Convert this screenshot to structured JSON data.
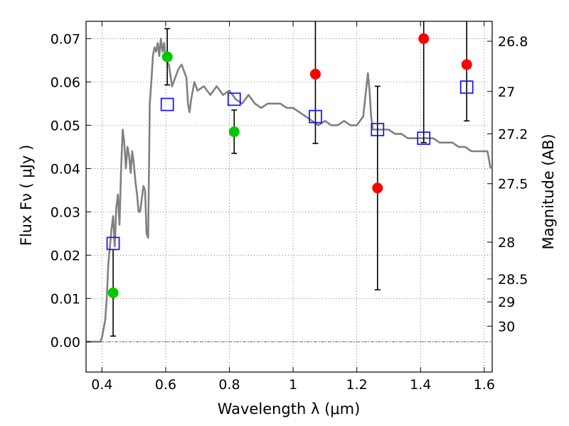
{
  "chart_data": {
    "type": "scatter",
    "xlabel": "Wavelength  λ (μm)",
    "ylabel": "Flux  Fν  ( μJy )",
    "y2label": "Magnitude (AB)",
    "xlim": [
      0.35,
      1.625
    ],
    "ylim": [
      -0.007,
      0.074
    ],
    "grid": true,
    "x_ticks": [
      {
        "value": 0.4,
        "label": "0.4"
      },
      {
        "value": 0.6,
        "label": "0.6"
      },
      {
        "value": 0.8,
        "label": "0.8"
      },
      {
        "value": 1.0,
        "label": "1"
      },
      {
        "value": 1.2,
        "label": "1.2"
      },
      {
        "value": 1.4,
        "label": "1.4"
      },
      {
        "value": 1.6,
        "label": "1.6"
      }
    ],
    "y_ticks": [
      {
        "value": 0.0,
        "label": "0.00"
      },
      {
        "value": 0.01,
        "label": "0.01"
      },
      {
        "value": 0.02,
        "label": "0.02"
      },
      {
        "value": 0.03,
        "label": "0.03"
      },
      {
        "value": 0.04,
        "label": "0.04"
      },
      {
        "value": 0.05,
        "label": "0.05"
      },
      {
        "value": 0.06,
        "label": "0.06"
      },
      {
        "value": 0.07,
        "label": "0.07"
      }
    ],
    "y2_ticks": [
      {
        "flux": 0.0694,
        "label": "26.8"
      },
      {
        "flux": 0.0578,
        "label": "27"
      },
      {
        "flux": 0.048,
        "label": "27.2"
      },
      {
        "flux": 0.0365,
        "label": "27.5"
      },
      {
        "flux": 0.023,
        "label": "28"
      },
      {
        "flux": 0.0145,
        "label": "28.5"
      },
      {
        "flux": 0.0092,
        "label": "29"
      },
      {
        "flux": 0.0036,
        "label": "30"
      }
    ],
    "series": [
      {
        "marker": "line",
        "color": "#808080",
        "x": [
          0.35,
          0.38,
          0.395,
          0.4,
          0.41,
          0.415,
          0.42,
          0.425,
          0.43,
          0.435,
          0.44,
          0.445,
          0.45,
          0.455,
          0.46,
          0.465,
          0.47,
          0.475,
          0.48,
          0.485,
          0.49,
          0.495,
          0.5,
          0.505,
          0.51,
          0.515,
          0.52,
          0.525,
          0.53,
          0.535,
          0.54,
          0.545,
          0.55,
          0.555,
          0.56,
          0.565,
          0.57,
          0.575,
          0.58,
          0.585,
          0.59,
          0.595,
          0.6,
          0.61,
          0.62,
          0.63,
          0.64,
          0.65,
          0.66,
          0.665,
          0.67,
          0.675,
          0.68,
          0.69,
          0.7,
          0.72,
          0.74,
          0.76,
          0.78,
          0.8,
          0.82,
          0.84,
          0.86,
          0.88,
          0.9,
          0.92,
          0.94,
          0.96,
          0.98,
          1.0,
          1.02,
          1.04,
          1.06,
          1.08,
          1.1,
          1.12,
          1.14,
          1.16,
          1.18,
          1.2,
          1.22,
          1.235,
          1.24,
          1.245,
          1.25,
          1.26,
          1.28,
          1.3,
          1.32,
          1.34,
          1.36,
          1.38,
          1.4,
          1.42,
          1.44,
          1.46,
          1.48,
          1.5,
          1.52,
          1.54,
          1.56,
          1.58,
          1.6,
          1.61,
          1.62
        ],
        "y": [
          0.0,
          0.0,
          0.0,
          0.001,
          0.005,
          0.01,
          0.018,
          0.022,
          0.026,
          0.029,
          0.022,
          0.031,
          0.034,
          0.027,
          0.04,
          0.049,
          0.046,
          0.04,
          0.045,
          0.043,
          0.039,
          0.044,
          0.041,
          0.037,
          0.034,
          0.03,
          0.03,
          0.033,
          0.036,
          0.035,
          0.025,
          0.024,
          0.055,
          0.06,
          0.066,
          0.068,
          0.067,
          0.069,
          0.066,
          0.07,
          0.067,
          0.069,
          0.065,
          0.064,
          0.059,
          0.061,
          0.063,
          0.064,
          0.062,
          0.061,
          0.055,
          0.053,
          0.056,
          0.06,
          0.058,
          0.059,
          0.057,
          0.059,
          0.057,
          0.058,
          0.056,
          0.055,
          0.057,
          0.055,
          0.054,
          0.055,
          0.055,
          0.055,
          0.054,
          0.054,
          0.053,
          0.052,
          0.051,
          0.05,
          0.051,
          0.05,
          0.05,
          0.051,
          0.05,
          0.05,
          0.052,
          0.062,
          0.058,
          0.052,
          0.049,
          0.049,
          0.049,
          0.049,
          0.048,
          0.048,
          0.047,
          0.047,
          0.047,
          0.047,
          0.047,
          0.046,
          0.046,
          0.046,
          0.045,
          0.045,
          0.044,
          0.044,
          0.044,
          0.044,
          0.04
        ]
      },
      {
        "marker": "square",
        "color": "#1a1aff",
        "x": [
          0.435,
          0.605,
          0.815,
          1.07,
          1.265,
          1.41,
          1.545
        ],
        "y": [
          0.0227,
          0.0548,
          0.056,
          0.052,
          0.049,
          0.047,
          0.0588
        ]
      },
      {
        "marker": "circle",
        "color": "#00c800",
        "x": [
          0.435,
          0.605,
          0.815
        ],
        "y": [
          0.0113,
          0.0658,
          0.0485
        ],
        "err": [
          0.01,
          0.0065,
          0.005
        ]
      },
      {
        "marker": "circle",
        "color": "#ff0000",
        "x": [
          1.07,
          1.265,
          1.41,
          1.545
        ],
        "y": [
          0.0618,
          0.0355,
          0.07,
          0.064
        ],
        "err": [
          0.016,
          0.0235,
          0.024,
          0.013
        ]
      }
    ]
  }
}
